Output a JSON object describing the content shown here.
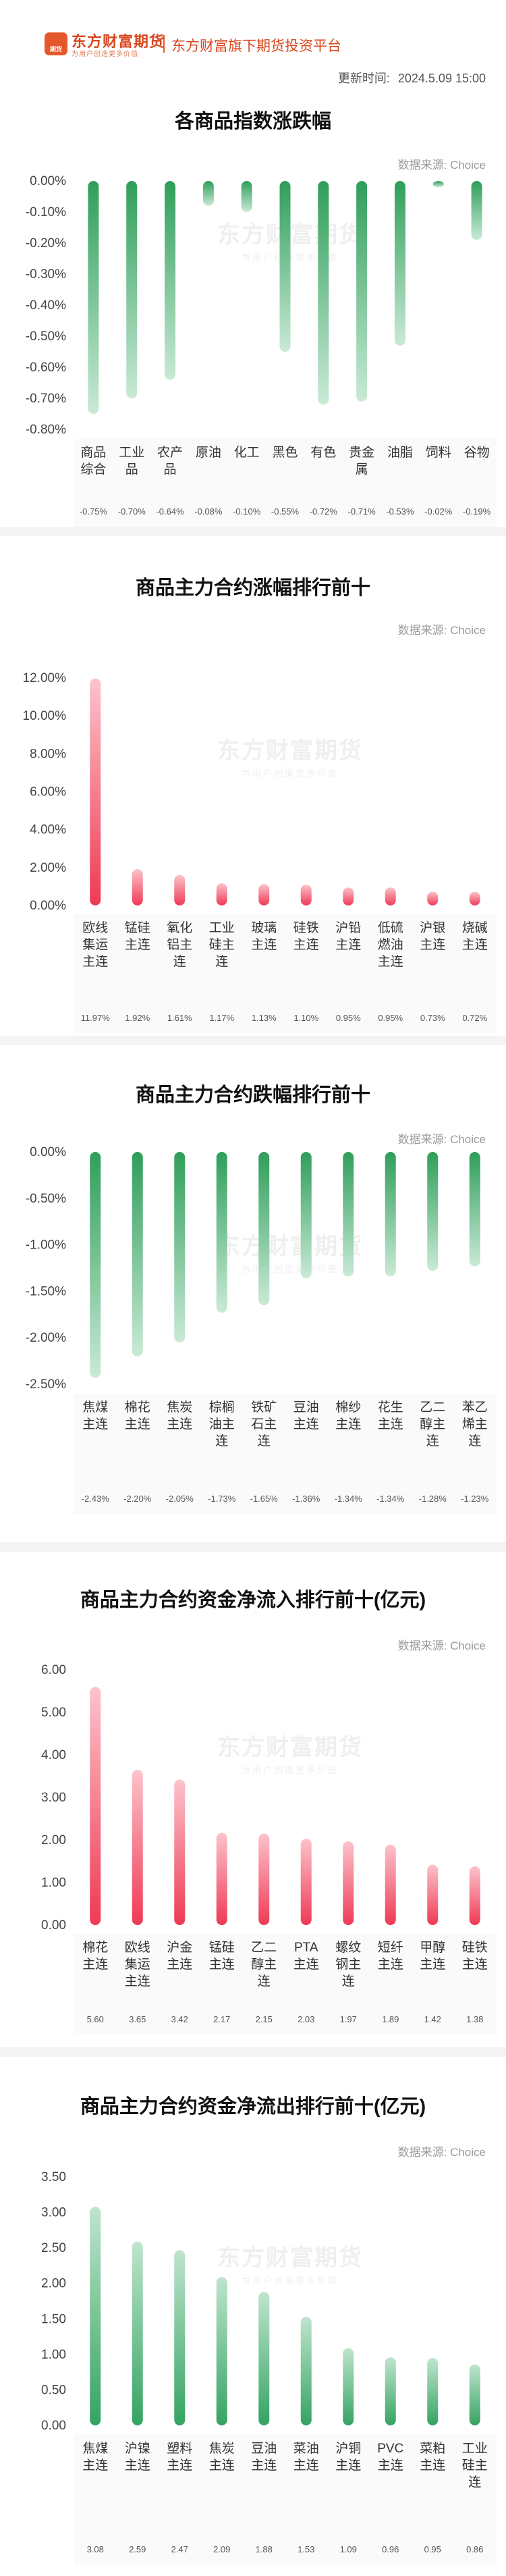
{
  "header": {
    "logo_badge": "期货",
    "brand_name": "东方财富期货",
    "brand_slogan": "为用户创造更多价值",
    "platform": "东方财富旗下期货投资平台",
    "update_label": "更新时间:",
    "update_time": "2024.5.09 15:00"
  },
  "watermark": {
    "name": "东方财富期货",
    "slogan": "为用户创造更多价值"
  },
  "colors": {
    "down_green": "#3aa766",
    "up_red": "#f0405a",
    "axis_text": "#444444",
    "grid": "#e3e3e3"
  },
  "chart_data": [
    {
      "type": "bar",
      "title": "各商品指数涨跌幅",
      "source": "数据来源: Choice",
      "direction": "down",
      "unit": "percent",
      "ylim": [
        -0.8,
        0.0
      ],
      "yticks": [
        "0.00%",
        "-0.10%",
        "-0.20%",
        "-0.30%",
        "-0.40%",
        "-0.50%",
        "-0.60%",
        "-0.70%",
        "-0.80%"
      ],
      "categories": [
        [
          "商品",
          "综合"
        ],
        [
          "工业",
          "品"
        ],
        [
          "农产",
          "品"
        ],
        [
          "原油"
        ],
        [
          "化工"
        ],
        [
          "黑色"
        ],
        [
          "有色"
        ],
        [
          "贵金",
          "属"
        ],
        [
          "油脂"
        ],
        [
          "饲料"
        ],
        [
          "谷物"
        ]
      ],
      "values": [
        -0.75,
        -0.7,
        -0.64,
        -0.08,
        -0.1,
        -0.55,
        -0.72,
        -0.71,
        -0.53,
        -0.02,
        -0.19
      ],
      "value_labels": [
        "-0.75%",
        "-0.70%",
        "-0.64%",
        "-0.08%",
        "-0.10%",
        "-0.55%",
        "-0.72%",
        "-0.71%",
        "-0.53%",
        "-0.02%",
        "-0.19%"
      ],
      "grid": false
    },
    {
      "type": "bar",
      "title": "商品主力合约涨幅排行前十",
      "source": "数据来源: Choice",
      "direction": "up",
      "unit": "percent",
      "ylim": [
        0,
        12
      ],
      "yticks": [
        "12.00%",
        "10.00%",
        "8.00%",
        "6.00%",
        "4.00%",
        "2.00%",
        "0.00%"
      ],
      "categories": [
        [
          "欧线",
          "集运",
          "主连"
        ],
        [
          "锰硅",
          "主连"
        ],
        [
          "氧化",
          "铝主",
          "连"
        ],
        [
          "工业",
          "硅主",
          "连"
        ],
        [
          "玻璃",
          "主连"
        ],
        [
          "硅铁",
          "主连"
        ],
        [
          "沪铅",
          "主连"
        ],
        [
          "低硫",
          "燃油",
          "主连"
        ],
        [
          "沪银",
          "主连"
        ],
        [
          "烧碱",
          "主连"
        ]
      ],
      "values": [
        11.97,
        1.92,
        1.61,
        1.17,
        1.13,
        1.1,
        0.95,
        0.95,
        0.73,
        0.72
      ],
      "value_labels": [
        "11.97%",
        "1.92%",
        "1.61%",
        "1.17%",
        "1.13%",
        "1.10%",
        "0.95%",
        "0.95%",
        "0.73%",
        "0.72%"
      ],
      "grid": false
    },
    {
      "type": "bar",
      "title": "商品主力合约跌幅排行前十",
      "source": "数据来源: Choice",
      "direction": "down",
      "unit": "percent",
      "ylim": [
        -2.5,
        0.0
      ],
      "yticks": [
        "0.00%",
        "-0.50%",
        "-1.00%",
        "-1.50%",
        "-2.00%",
        "-2.50%"
      ],
      "categories": [
        [
          "焦煤",
          "主连"
        ],
        [
          "棉花",
          "主连"
        ],
        [
          "焦炭",
          "主连"
        ],
        [
          "棕榈",
          "油主",
          "连"
        ],
        [
          "铁矿",
          "石主",
          "连"
        ],
        [
          "豆油",
          "主连"
        ],
        [
          "棉纱",
          "主连"
        ],
        [
          "花生",
          "主连"
        ],
        [
          "乙二",
          "醇主",
          "连"
        ],
        [
          "苯乙",
          "烯主",
          "连"
        ]
      ],
      "values": [
        -2.43,
        -2.2,
        -2.05,
        -1.73,
        -1.65,
        -1.36,
        -1.34,
        -1.34,
        -1.28,
        -1.23
      ],
      "value_labels": [
        "-2.43%",
        "-2.20%",
        "-2.05%",
        "-1.73%",
        "-1.65%",
        "-1.36%",
        "-1.34%",
        "-1.34%",
        "-1.28%",
        "-1.23%"
      ],
      "grid": false
    },
    {
      "type": "bar",
      "title": "商品主力合约资金净流入排行前十(亿元)",
      "source": "数据来源: Choice",
      "direction": "up",
      "unit": "yi_yuan",
      "ylim": [
        0,
        6
      ],
      "yticks": [
        "6.00",
        "5.00",
        "4.00",
        "3.00",
        "2.00",
        "1.00",
        "0.00"
      ],
      "categories": [
        [
          "棉花",
          "主连"
        ],
        [
          "欧线",
          "集运",
          "主连"
        ],
        [
          "沪金",
          "主连"
        ],
        [
          "锰硅",
          "主连"
        ],
        [
          "乙二",
          "醇主",
          "连"
        ],
        [
          "PTA",
          "主连"
        ],
        [
          "螺纹",
          "钢主",
          "连"
        ],
        [
          "短纤",
          "主连"
        ],
        [
          "甲醇",
          "主连"
        ],
        [
          "硅铁",
          "主连"
        ]
      ],
      "values": [
        5.6,
        3.65,
        3.42,
        2.17,
        2.15,
        2.03,
        1.97,
        1.89,
        1.42,
        1.38
      ],
      "value_labels": [
        "5.60",
        "3.65",
        "3.42",
        "2.17",
        "2.15",
        "2.03",
        "1.97",
        "1.89",
        "1.42",
        "1.38"
      ],
      "grid": false
    },
    {
      "type": "bar",
      "title": "商品主力合约资金净流出排行前十(亿元)",
      "source": "数据来源: Choice",
      "direction": "up_green",
      "unit": "yi_yuan",
      "ylim": [
        0,
        3.5
      ],
      "yticks": [
        "3.50",
        "3.00",
        "2.50",
        "2.00",
        "1.50",
        "1.00",
        "0.50",
        "0.00"
      ],
      "categories": [
        [
          "焦煤",
          "主连"
        ],
        [
          "沪镍",
          "主连"
        ],
        [
          "塑料",
          "主连"
        ],
        [
          "焦炭",
          "主连"
        ],
        [
          "豆油",
          "主连"
        ],
        [
          "菜油",
          "主连"
        ],
        [
          "沪铜",
          "主连"
        ],
        [
          "PVC",
          "主连"
        ],
        [
          "菜粕",
          "主连"
        ],
        [
          "工业",
          "硅主",
          "连"
        ]
      ],
      "values": [
        3.08,
        2.59,
        2.47,
        2.09,
        1.88,
        1.53,
        1.09,
        0.96,
        0.95,
        0.86
      ],
      "value_labels": [
        "3.08",
        "2.59",
        "2.47",
        "2.09",
        "1.88",
        "1.53",
        "1.09",
        "0.96",
        "0.95",
        "0.86"
      ],
      "grid": false
    }
  ]
}
